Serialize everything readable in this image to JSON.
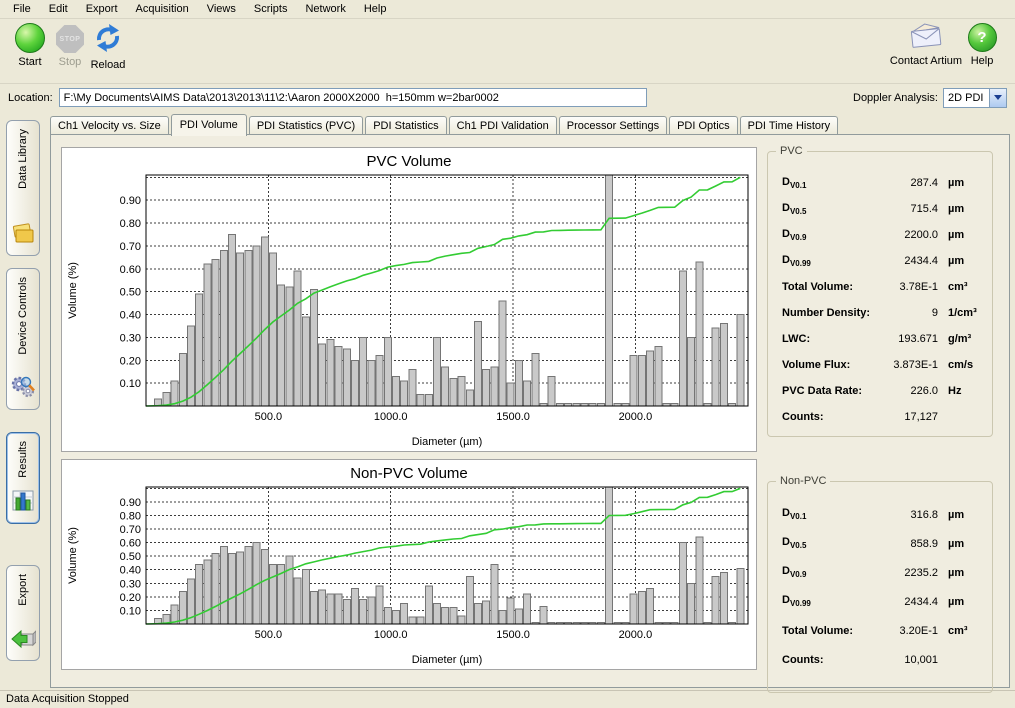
{
  "menu": {
    "items": [
      "File",
      "Edit",
      "Export",
      "Acquisition",
      "Views",
      "Scripts",
      "Network",
      "Help"
    ]
  },
  "toolbar": {
    "start_label": "Start",
    "stop_label": "Stop",
    "stop_icon_text": "STOP",
    "reload_label": "Reload",
    "contact_label": "Contact Artium",
    "help_label": "Help",
    "help_icon_text": "?"
  },
  "location": {
    "label": "Location:",
    "value": "F:\\My Documents\\AIMS Data\\2013\\2013\\11\\2:\\Aaron 2000X2000  h=150mm w=2bar0002"
  },
  "doppler": {
    "label": "Doppler Analysis:",
    "value": "2D PDI"
  },
  "sidebar": {
    "items": [
      {
        "label": "Data Library",
        "active": false
      },
      {
        "label": "Device Controls",
        "active": false
      },
      {
        "label": "Results",
        "active": true
      },
      {
        "label": "Export",
        "active": false
      }
    ]
  },
  "tabs": {
    "active": "PDI Volume",
    "items": [
      "Ch1 Velocity vs. Size",
      "PDI Volume",
      "PDI Statistics (PVC)",
      "PDI Statistics",
      "Ch1 PDI Validation",
      "Processor Settings",
      "PDI Optics",
      "PDI Time History"
    ]
  },
  "stats": {
    "pvc": {
      "title": "PVC",
      "rows": [
        {
          "label": "D",
          "sub": "V0.1",
          "value": "287.4",
          "unit": "µm"
        },
        {
          "label": "D",
          "sub": "V0.5",
          "value": "715.4",
          "unit": "µm"
        },
        {
          "label": "D",
          "sub": "V0.9",
          "value": "2200.0",
          "unit": "µm"
        },
        {
          "label": "D",
          "sub": "V0.99",
          "value": "2434.4",
          "unit": "µm"
        },
        {
          "label": "Total Volume:",
          "value": "3.78E-1",
          "unit": "cm³"
        },
        {
          "label": "Number Density:",
          "value": "9",
          "unit": "1/cm³"
        },
        {
          "label": "LWC:",
          "value": "193.671",
          "unit": "g/m³"
        },
        {
          "label": "Volume Flux:",
          "value": "3.873E-1",
          "unit": "cm/s"
        },
        {
          "label": "PVC Data Rate:",
          "value": "226.0",
          "unit": "Hz"
        },
        {
          "label": "Counts:",
          "value": "17,127",
          "unit": ""
        }
      ]
    },
    "nonpvc": {
      "title": "Non-PVC",
      "rows": [
        {
          "label": "D",
          "sub": "V0.1",
          "value": "316.8",
          "unit": "µm"
        },
        {
          "label": "D",
          "sub": "V0.5",
          "value": "858.9",
          "unit": "µm"
        },
        {
          "label": "D",
          "sub": "V0.9",
          "value": "2235.2",
          "unit": "µm"
        },
        {
          "label": "D",
          "sub": "V0.99",
          "value": "2434.4",
          "unit": "µm"
        },
        {
          "label": "Total Volume:",
          "value": "3.20E-1",
          "unit": "cm³"
        },
        {
          "label": "Counts:",
          "value": "10,001",
          "unit": ""
        }
      ]
    }
  },
  "status_bar": {
    "text": "Data Acquisition Stopped"
  },
  "chart_data": [
    {
      "type": "bar",
      "title": "PVC Volume",
      "xlabel": "Diameter (µm)",
      "ylabel": "Volume (%)",
      "xlim": [
        0,
        2460
      ],
      "ylim": [
        0,
        1.01
      ],
      "xticks": [
        500,
        1000,
        1500,
        2000
      ],
      "yticks": [
        0.1,
        0.2,
        0.3,
        0.4,
        0.5,
        0.6,
        0.7,
        0.8,
        0.9
      ],
      "ygrid": [
        0.1,
        0.2,
        0.3,
        0.4,
        0.5,
        0.6,
        0.7,
        0.8,
        0.9,
        1.0
      ],
      "grid": "dashed",
      "x_bins": {
        "start": 50,
        "step": 33.5,
        "count": 72
      },
      "values": [
        0.03,
        0.06,
        0.11,
        0.23,
        0.35,
        0.49,
        0.62,
        0.64,
        0.68,
        0.75,
        0.67,
        0.68,
        0.7,
        0.74,
        0.67,
        0.53,
        0.52,
        0.59,
        0.39,
        0.51,
        0.27,
        0.29,
        0.26,
        0.25,
        0.2,
        0.3,
        0.2,
        0.22,
        0.3,
        0.13,
        0.11,
        0.16,
        0.05,
        0.05,
        0.3,
        0.17,
        0.12,
        0.13,
        0.07,
        0.37,
        0.16,
        0.17,
        0.46,
        0.1,
        0.2,
        0.11,
        0.23,
        0.01,
        0.13,
        0.01,
        0.01,
        0.01,
        0.01,
        0.01,
        0.01,
        1.01,
        0.01,
        0.01,
        0.22,
        0.22,
        0.24,
        0.26,
        0.01,
        0.01,
        0.59,
        0.3,
        0.63,
        0.01,
        0.34,
        0.36,
        0.01,
        0.4
      ],
      "overlay": {
        "type": "line",
        "name": "cumulative volume fraction",
        "note": "normalized cumulative sum of bar values, rises 0 to 1"
      },
      "colors": {
        "bar": "#c9c9c9",
        "bar_edge": "#757575",
        "line": "#33cc33"
      }
    },
    {
      "type": "bar",
      "title": "Non-PVC Volume",
      "xlabel": "Diameter (µm)",
      "ylabel": "Volume (%)",
      "xlim": [
        0,
        2460
      ],
      "ylim": [
        0,
        1.01
      ],
      "xticks": [
        500,
        1000,
        1500,
        2000
      ],
      "yticks": [
        0.1,
        0.2,
        0.3,
        0.4,
        0.5,
        0.6,
        0.7,
        0.8,
        0.9
      ],
      "ygrid": [
        0.1,
        0.2,
        0.3,
        0.4,
        0.5,
        0.6,
        0.7,
        0.8,
        0.9,
        1.0
      ],
      "grid": "dashed",
      "x_bins": {
        "start": 50,
        "step": 33.5,
        "count": 72
      },
      "values": [
        0.04,
        0.07,
        0.14,
        0.24,
        0.33,
        0.44,
        0.47,
        0.52,
        0.57,
        0.52,
        0.53,
        0.57,
        0.6,
        0.55,
        0.44,
        0.44,
        0.5,
        0.34,
        0.4,
        0.24,
        0.25,
        0.22,
        0.22,
        0.18,
        0.26,
        0.18,
        0.2,
        0.28,
        0.12,
        0.1,
        0.15,
        0.05,
        0.05,
        0.28,
        0.15,
        0.12,
        0.12,
        0.06,
        0.35,
        0.15,
        0.17,
        0.44,
        0.1,
        0.19,
        0.11,
        0.22,
        0.01,
        0.13,
        0.01,
        0.01,
        0.01,
        0.01,
        0.01,
        0.01,
        0.01,
        1.01,
        0.01,
        0.01,
        0.22,
        0.24,
        0.26,
        0.01,
        0.01,
        0.01,
        0.6,
        0.3,
        0.64,
        0.01,
        0.35,
        0.38,
        0.01,
        0.41
      ],
      "overlay": {
        "type": "line",
        "name": "cumulative volume fraction",
        "note": "normalized cumulative sum of bar values, rises 0 to 1"
      },
      "colors": {
        "bar": "#c9c9c9",
        "bar_edge": "#757575",
        "line": "#33cc33"
      }
    }
  ]
}
